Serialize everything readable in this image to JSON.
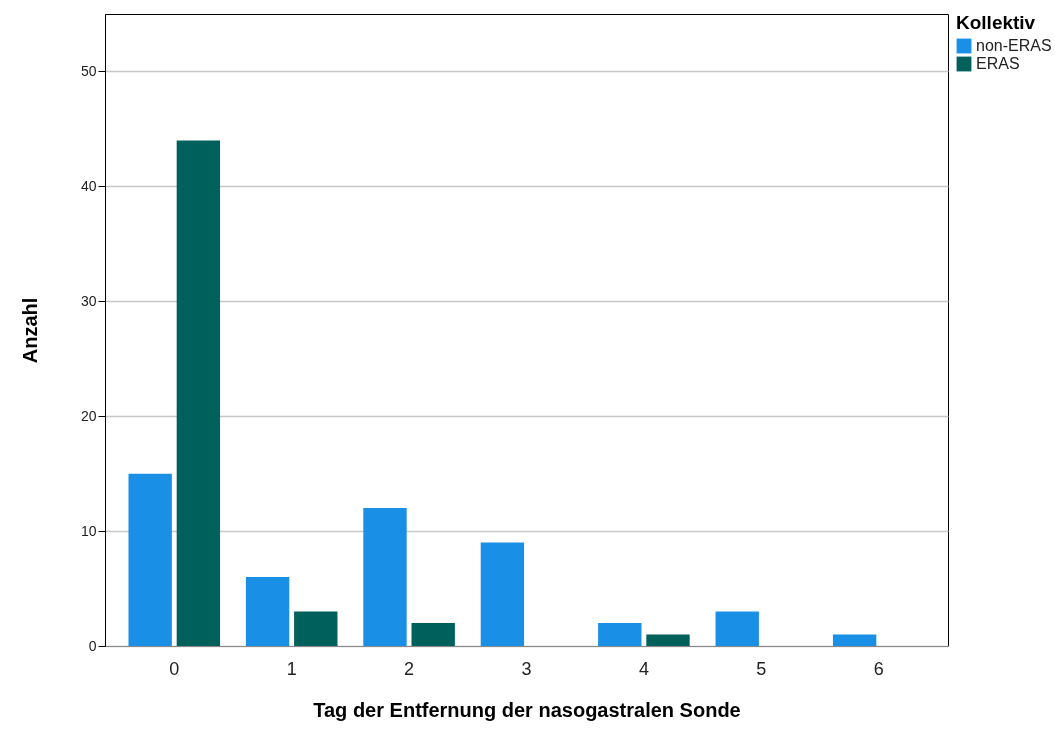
{
  "chart_data": {
    "type": "bar",
    "xlabel": "Tag der Entfernung der nasogastralen Sonde",
    "ylabel": "Anzahl",
    "legend_title": "Kollektiv",
    "categories": [
      "0",
      "1",
      "2",
      "3",
      "4",
      "5",
      "6"
    ],
    "series": [
      {
        "name": "non-ERAS",
        "color": "#1a8fe6",
        "values": [
          15,
          6,
          12,
          9,
          2,
          3,
          1
        ]
      },
      {
        "name": "ERAS",
        "color": "#00605c",
        "values": [
          44,
          3,
          2,
          0,
          1,
          0,
          0
        ]
      }
    ],
    "ylim": [
      0,
      55
    ],
    "yticks": [
      0,
      10,
      20,
      30,
      40,
      50
    ],
    "grid": "y",
    "legend": "top right"
  }
}
